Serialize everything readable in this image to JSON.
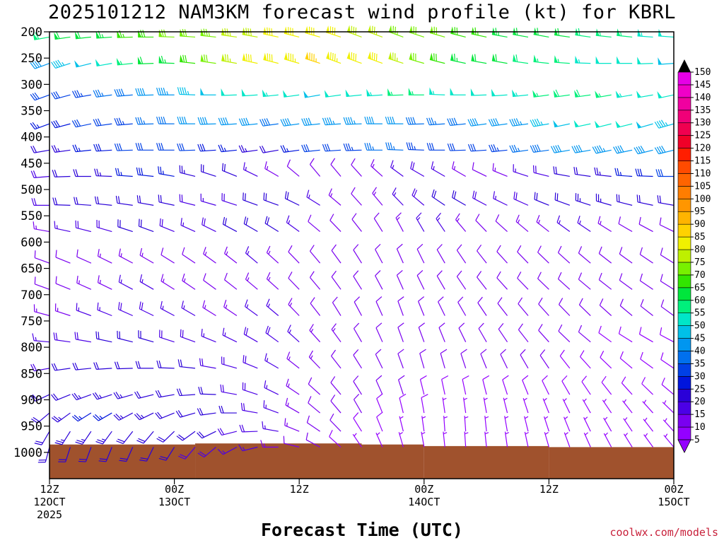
{
  "title": "2025101212 NAM3KM forecast wind profile (kt) for KBRL",
  "watermark": "coolwx.com/models",
  "colors": {
    "terrain": "#a0522d",
    "watermark": "#c8203a"
  },
  "chart_data": {
    "type": "wind-barb time-height",
    "title": "2025101212 NAM3KM forecast wind profile (kt) for KBRL",
    "xlabel": "Forecast Time (UTC)",
    "ylabel": "",
    "y_levels": [
      200,
      250,
      300,
      350,
      400,
      450,
      500,
      550,
      600,
      650,
      700,
      750,
      800,
      850,
      900,
      950,
      1000
    ],
    "ylim": [
      200,
      1050
    ],
    "xlim_hours": [
      0,
      60
    ],
    "x_ticks": [
      {
        "hour": 0,
        "label": "12Z",
        "sub": "12OCT",
        "sub2": "2025"
      },
      {
        "hour": 12,
        "label": "00Z",
        "sub": "13OCT",
        "sub2": ""
      },
      {
        "hour": 24,
        "label": "12Z",
        "sub": "",
        "sub2": ""
      },
      {
        "hour": 36,
        "label": "00Z",
        "sub": "14OCT",
        "sub2": ""
      },
      {
        "hour": 48,
        "label": "12Z",
        "sub": "",
        "sub2": ""
      },
      {
        "hour": 60,
        "label": "00Z",
        "sub": "15OCT",
        "sub2": ""
      }
    ],
    "colorbar": {
      "ticks": [
        5,
        10,
        15,
        20,
        25,
        30,
        35,
        40,
        45,
        50,
        55,
        60,
        65,
        70,
        75,
        80,
        85,
        90,
        95,
        100,
        105,
        110,
        115,
        120,
        125,
        130,
        135,
        140,
        145,
        150
      ],
      "colors": [
        "#9400ff",
        "#7a00f0",
        "#4b00e6",
        "#2a00d8",
        "#0015dd",
        "#0040e6",
        "#0070ee",
        "#0096f0",
        "#00c0e8",
        "#00e6c8",
        "#00f07c",
        "#00e63c",
        "#32e600",
        "#78f000",
        "#bef000",
        "#f0f000",
        "#ffd200",
        "#ffb400",
        "#ff9600",
        "#ff7d00",
        "#ff6400",
        "#ff4b00",
        "#ff1e00",
        "#f00028",
        "#f00050",
        "#f00078",
        "#f000a0",
        "#f000c8",
        "#e600e6"
      ]
    },
    "barb_times_hours": [
      0,
      2,
      4,
      6,
      8,
      10,
      12,
      14,
      16,
      18,
      20,
      22,
      24,
      26,
      28,
      30,
      32,
      34,
      36,
      38,
      40,
      42,
      44,
      46,
      48,
      50,
      52,
      54,
      56,
      58,
      60
    ],
    "barb_levels": [
      210,
      260,
      320,
      375,
      425,
      475,
      530,
      580,
      640,
      690,
      740,
      790,
      840,
      890,
      925,
      960,
      990
    ],
    "speed_kt": [
      [
        58,
        60,
        62,
        64,
        66,
        68,
        70,
        72,
        74,
        76,
        78,
        80,
        82,
        82,
        80,
        78,
        76,
        74,
        72,
        70,
        68,
        66,
        64,
        62,
        60,
        60,
        58,
        56,
        55,
        54,
        52
      ],
      [
        40,
        45,
        48,
        52,
        56,
        60,
        64,
        68,
        72,
        76,
        80,
        82,
        84,
        85,
        84,
        82,
        80,
        76,
        72,
        68,
        64,
        62,
        60,
        58,
        56,
        55,
        54,
        52,
        50,
        50,
        48
      ],
      [
        30,
        32,
        34,
        36,
        38,
        40,
        44,
        46,
        48,
        50,
        52,
        54,
        50,
        48,
        50,
        52,
        54,
        56,
        55,
        54,
        52,
        50,
        52,
        54,
        56,
        58,
        58,
        56,
        54,
        52,
        50
      ],
      [
        26,
        28,
        30,
        32,
        34,
        36,
        38,
        40,
        42,
        42,
        40,
        38,
        40,
        42,
        44,
        44,
        42,
        40,
        38,
        36,
        38,
        40,
        42,
        44,
        46,
        48,
        50,
        52,
        50,
        48,
        46
      ],
      [
        22,
        24,
        26,
        28,
        30,
        32,
        32,
        30,
        28,
        26,
        24,
        22,
        26,
        30,
        32,
        34,
        36,
        36,
        34,
        32,
        30,
        32,
        34,
        36,
        38,
        40,
        42,
        44,
        42,
        40,
        40
      ],
      [
        18,
        20,
        22,
        24,
        26,
        28,
        26,
        24,
        22,
        20,
        16,
        14,
        12,
        10,
        10,
        12,
        14,
        16,
        18,
        16,
        14,
        12,
        14,
        16,
        18,
        20,
        22,
        24,
        26,
        28,
        30
      ],
      [
        18,
        20,
        20,
        22,
        22,
        22,
        20,
        18,
        16,
        18,
        20,
        22,
        20,
        16,
        14,
        12,
        14,
        16,
        18,
        20,
        20,
        18,
        16,
        18,
        20,
        22,
        24,
        24,
        22,
        20,
        20
      ],
      [
        14,
        16,
        18,
        18,
        20,
        20,
        18,
        16,
        18,
        20,
        22,
        20,
        16,
        12,
        10,
        10,
        12,
        14,
        16,
        16,
        14,
        12,
        12,
        14,
        14,
        16,
        16,
        14,
        12,
        12,
        12
      ],
      [
        10,
        12,
        12,
        14,
        14,
        14,
        12,
        12,
        14,
        14,
        16,
        14,
        12,
        10,
        10,
        12,
        12,
        10,
        10,
        12,
        12,
        10,
        10,
        12,
        12,
        10,
        10,
        10,
        12,
        12,
        12
      ],
      [
        12,
        12,
        14,
        14,
        16,
        16,
        14,
        14,
        12,
        12,
        14,
        14,
        12,
        10,
        10,
        10,
        12,
        12,
        12,
        10,
        10,
        10,
        12,
        12,
        12,
        10,
        10,
        10,
        10,
        12,
        12
      ],
      [
        14,
        14,
        16,
        16,
        18,
        18,
        16,
        16,
        14,
        14,
        16,
        16,
        14,
        12,
        12,
        12,
        12,
        12,
        10,
        10,
        10,
        12,
        12,
        12,
        12,
        10,
        10,
        10,
        10,
        10,
        10
      ],
      [
        16,
        18,
        18,
        20,
        20,
        20,
        18,
        18,
        16,
        16,
        18,
        18,
        16,
        14,
        14,
        12,
        12,
        12,
        10,
        10,
        10,
        10,
        12,
        12,
        12,
        10,
        10,
        8,
        8,
        8,
        8
      ],
      [
        18,
        20,
        22,
        22,
        22,
        22,
        20,
        20,
        18,
        18,
        18,
        16,
        14,
        14,
        12,
        12,
        12,
        10,
        10,
        10,
        10,
        10,
        10,
        10,
        10,
        8,
        8,
        8,
        8,
        8,
        8
      ],
      [
        20,
        22,
        24,
        24,
        24,
        22,
        20,
        20,
        20,
        18,
        18,
        16,
        14,
        12,
        12,
        10,
        10,
        10,
        8,
        8,
        8,
        8,
        8,
        8,
        8,
        8,
        8,
        8,
        8,
        8,
        8
      ],
      [
        22,
        24,
        26,
        26,
        24,
        24,
        22,
        22,
        20,
        20,
        18,
        16,
        14,
        12,
        10,
        10,
        8,
        8,
        8,
        6,
        6,
        6,
        6,
        6,
        6,
        6,
        6,
        6,
        6,
        6,
        6
      ],
      [
        22,
        24,
        24,
        24,
        22,
        22,
        22,
        20,
        20,
        18,
        18,
        16,
        14,
        12,
        10,
        8,
        8,
        6,
        6,
        6,
        6,
        6,
        6,
        6,
        6,
        6,
        6,
        6,
        6,
        6,
        6
      ],
      [
        20,
        20,
        22,
        22,
        20,
        20,
        20,
        18,
        18,
        16,
        16,
        14,
        12,
        10,
        8,
        6,
        6,
        6,
        6,
        6,
        6,
        6,
        6,
        6,
        6,
        6,
        6,
        6,
        6,
        6,
        6
      ]
    ],
    "direction_deg": [
      [
        260,
        262,
        264,
        266,
        268,
        270,
        272,
        274,
        276,
        278,
        280,
        282,
        284,
        286,
        288,
        290,
        290,
        290,
        288,
        286,
        284,
        282,
        280,
        280,
        280,
        278,
        278,
        276,
        276,
        274,
        274
      ],
      [
        250,
        252,
        256,
        260,
        264,
        268,
        272,
        276,
        278,
        280,
        282,
        284,
        286,
        288,
        290,
        290,
        290,
        288,
        286,
        284,
        282,
        280,
        280,
        278,
        276,
        274,
        272,
        270,
        270,
        268,
        266
      ],
      [
        250,
        255,
        260,
        262,
        265,
        268,
        270,
        272,
        270,
        268,
        266,
        264,
        262,
        260,
        262,
        264,
        266,
        268,
        270,
        272,
        270,
        268,
        266,
        264,
        262,
        262,
        262,
        260,
        260,
        260,
        258
      ],
      [
        250,
        255,
        258,
        262,
        265,
        268,
        270,
        270,
        268,
        266,
        264,
        262,
        262,
        264,
        266,
        268,
        270,
        270,
        268,
        266,
        264,
        262,
        262,
        262,
        260,
        258,
        258,
        256,
        256,
        254,
        254
      ],
      [
        260,
        262,
        264,
        266,
        268,
        270,
        270,
        268,
        266,
        264,
        262,
        260,
        262,
        264,
        266,
        268,
        270,
        272,
        272,
        270,
        268,
        266,
        264,
        262,
        262,
        260,
        260,
        258,
        258,
        256,
        256
      ],
      [
        265,
        268,
        270,
        272,
        274,
        276,
        280,
        284,
        288,
        292,
        296,
        300,
        310,
        320,
        320,
        318,
        312,
        306,
        300,
        300,
        300,
        296,
        292,
        288,
        284,
        280,
        278,
        276,
        274,
        272,
        270
      ],
      [
        270,
        272,
        274,
        276,
        278,
        280,
        282,
        284,
        286,
        288,
        290,
        290,
        296,
        302,
        310,
        318,
        320,
        316,
        310,
        304,
        300,
        298,
        296,
        294,
        292,
        290,
        288,
        286,
        284,
        282,
        280
      ],
      [
        280,
        282,
        284,
        286,
        288,
        290,
        292,
        294,
        296,
        298,
        300,
        302,
        306,
        310,
        316,
        322,
        328,
        332,
        330,
        326,
        320,
        316,
        312,
        310,
        308,
        306,
        304,
        302,
        300,
        298,
        296
      ],
      [
        290,
        292,
        294,
        296,
        298,
        300,
        302,
        304,
        306,
        308,
        310,
        312,
        316,
        320,
        324,
        328,
        332,
        336,
        334,
        330,
        326,
        322,
        318,
        316,
        314,
        312,
        310,
        308,
        306,
        304,
        302
      ],
      [
        290,
        292,
        294,
        296,
        298,
        300,
        302,
        304,
        306,
        308,
        310,
        312,
        316,
        320,
        324,
        328,
        332,
        336,
        334,
        330,
        326,
        322,
        318,
        316,
        314,
        312,
        310,
        308,
        306,
        304,
        302
      ],
      [
        285,
        288,
        290,
        292,
        294,
        296,
        298,
        300,
        302,
        304,
        306,
        310,
        316,
        322,
        328,
        332,
        336,
        340,
        338,
        334,
        330,
        326,
        322,
        320,
        318,
        316,
        314,
        312,
        310,
        308,
        306
      ],
      [
        275,
        278,
        280,
        282,
        284,
        286,
        288,
        290,
        292,
        296,
        300,
        306,
        312,
        318,
        324,
        330,
        336,
        340,
        340,
        338,
        334,
        330,
        326,
        322,
        318,
        314,
        310,
        306,
        302,
        300,
        298
      ],
      [
        260,
        262,
        264,
        266,
        268,
        270,
        272,
        276,
        280,
        286,
        292,
        300,
        308,
        316,
        322,
        328,
        334,
        340,
        344,
        344,
        342,
        338,
        334,
        330,
        326,
        322,
        318,
        314,
        310,
        306,
        304
      ],
      [
        245,
        248,
        250,
        252,
        254,
        256,
        260,
        266,
        272,
        280,
        288,
        296,
        304,
        312,
        320,
        328,
        336,
        342,
        346,
        348,
        348,
        346,
        342,
        338,
        334,
        330,
        326,
        322,
        318,
        314,
        310
      ],
      [
        230,
        234,
        238,
        240,
        242,
        244,
        248,
        254,
        262,
        270,
        280,
        290,
        300,
        310,
        320,
        330,
        338,
        346,
        350,
        352,
        352,
        350,
        346,
        342,
        338,
        334,
        330,
        326,
        322,
        318,
        314
      ],
      [
        210,
        212,
        214,
        216,
        218,
        220,
        226,
        234,
        244,
        256,
        268,
        280,
        292,
        304,
        316,
        328,
        338,
        346,
        352,
        356,
        356,
        354,
        350,
        346,
        342,
        338,
        334,
        330,
        326,
        322,
        318
      ],
      [
        195,
        198,
        200,
        202,
        204,
        206,
        212,
        220,
        230,
        242,
        256,
        270,
        284,
        298,
        312,
        326,
        336,
        344,
        350,
        354,
        356,
        354,
        352,
        348,
        344,
        340,
        336,
        332,
        328,
        324,
        320
      ]
    ],
    "terrain_profile": [
      {
        "hour": 0,
        "pressure": 985
      },
      {
        "hour": 14,
        "pressure": 983
      },
      {
        "hour": 30,
        "pressure": 985
      },
      {
        "hour": 36,
        "pressure": 988
      },
      {
        "hour": 48,
        "pressure": 990
      },
      {
        "hour": 60,
        "pressure": 988
      }
    ]
  }
}
